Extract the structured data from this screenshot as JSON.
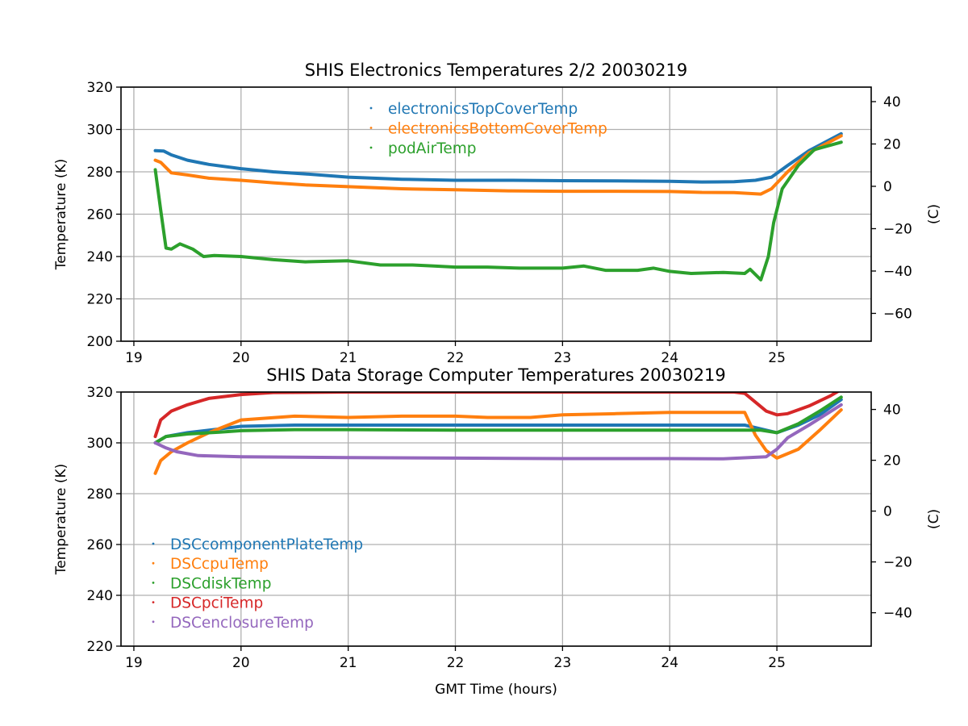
{
  "chart_data": [
    {
      "type": "line",
      "title": "SHIS Electronics Temperatures 2/2 20030219",
      "xlabel": "",
      "ylabel": "Temperature (K)",
      "ylabel_right": "(C)",
      "xlim": [
        18.88,
        25.88
      ],
      "ylim": [
        200,
        320
      ],
      "x_ticks": [
        "19",
        "20",
        "21",
        "22",
        "23",
        "24",
        "25"
      ],
      "y_ticks": [
        "200",
        "220",
        "240",
        "260",
        "280",
        "300",
        "320"
      ],
      "y_ticks_right": [
        "40",
        "20",
        "0",
        "−20",
        "−40",
        "−60"
      ],
      "y_ticks_right_values": [
        40,
        20,
        0,
        -20,
        -40,
        -60
      ],
      "grid": true,
      "legend_position": "top-center",
      "series": [
        {
          "name": "electronicsTopCoverTemp",
          "color": "#1f77b4",
          "x": [
            19.2,
            19.28,
            19.35,
            19.5,
            19.7,
            20.0,
            20.3,
            20.6,
            21.0,
            21.5,
            22.0,
            22.5,
            23.0,
            23.5,
            24.0,
            24.3,
            24.6,
            24.8,
            24.95,
            25.1,
            25.3,
            25.6
          ],
          "y": [
            290,
            289.8,
            288,
            285.5,
            283.5,
            281.5,
            280,
            279,
            277.5,
            276.5,
            276,
            276,
            275.8,
            275.7,
            275.5,
            275.2,
            275.3,
            276,
            277.5,
            283,
            290,
            298
          ]
        },
        {
          "name": "electronicsBottomCoverTemp",
          "color": "#ff7f0e",
          "x": [
            19.2,
            19.25,
            19.3,
            19.35,
            19.5,
            19.7,
            20.0,
            20.3,
            20.6,
            21.0,
            21.5,
            22.0,
            22.5,
            23.0,
            23.5,
            24.0,
            24.3,
            24.6,
            24.85,
            24.95,
            25.1,
            25.3,
            25.6
          ],
          "y": [
            285.5,
            284.5,
            282,
            279.5,
            278.5,
            277,
            276,
            274.8,
            273.8,
            273,
            272,
            271.5,
            271,
            270.8,
            270.8,
            270.7,
            270.3,
            270.2,
            269.5,
            272,
            280,
            289,
            297
          ]
        },
        {
          "name": "podAirTemp",
          "color": "#2ca02c",
          "x": [
            19.2,
            19.25,
            19.3,
            19.35,
            19.43,
            19.55,
            19.65,
            19.75,
            20.0,
            20.3,
            20.6,
            21.0,
            21.3,
            21.6,
            21.8,
            22.0,
            22.3,
            22.6,
            23.0,
            23.2,
            23.4,
            23.7,
            23.85,
            24.0,
            24.2,
            24.5,
            24.7,
            24.75,
            24.85,
            24.92,
            24.97,
            25.05,
            25.2,
            25.35,
            25.6
          ],
          "y": [
            281,
            262,
            244,
            243.5,
            246,
            243.5,
            240,
            240.5,
            240,
            238.5,
            237.5,
            238,
            236,
            236,
            235.5,
            235,
            235,
            234.5,
            234.5,
            235.5,
            233.5,
            233.5,
            234.5,
            233,
            232,
            232.5,
            232,
            234,
            229,
            240,
            256,
            272,
            283,
            290.5,
            294
          ]
        }
      ]
    },
    {
      "type": "line",
      "title": "SHIS Data Storage Computer Temperatures 20030219",
      "xlabel": "GMT Time (hours)",
      "ylabel": "Temperature (K)",
      "ylabel_right": "(C)",
      "xlim": [
        18.88,
        25.88
      ],
      "ylim": [
        220,
        320
      ],
      "x_ticks": [
        "19",
        "20",
        "21",
        "22",
        "23",
        "24",
        "25"
      ],
      "y_ticks": [
        "220",
        "240",
        "260",
        "280",
        "300",
        "320"
      ],
      "y_ticks_right": [
        "40",
        "20",
        "0",
        "−20",
        "−40"
      ],
      "y_ticks_right_values": [
        40,
        20,
        0,
        -20,
        -40
      ],
      "grid": true,
      "legend_position": "lower-left",
      "series": [
        {
          "name": "DSCcomponentPlateTemp",
          "color": "#1f77b4",
          "x": [
            19.2,
            19.3,
            19.5,
            19.8,
            20.0,
            20.5,
            21.0,
            22.0,
            23.0,
            24.0,
            24.7,
            24.85,
            25.0,
            25.2,
            25.4,
            25.6
          ],
          "y": [
            300,
            302.5,
            304,
            305.5,
            306.5,
            307,
            307,
            307,
            307,
            307,
            307,
            305.5,
            304,
            307,
            311,
            317
          ]
        },
        {
          "name": "DSCcpuTemp",
          "color": "#ff7f0e",
          "x": [
            19.2,
            19.25,
            19.35,
            19.5,
            19.7,
            20.0,
            20.5,
            21.0,
            21.5,
            22.0,
            22.3,
            22.7,
            23.0,
            23.5,
            24.0,
            24.5,
            24.7,
            24.8,
            24.9,
            25.0,
            25.2,
            25.4,
            25.6
          ],
          "y": [
            288,
            293,
            296.5,
            300,
            304,
            309,
            310.5,
            310,
            310.5,
            310.5,
            310,
            310,
            311,
            311.5,
            312,
            312,
            312,
            303,
            297,
            294,
            297.5,
            305,
            313
          ]
        },
        {
          "name": "DSCdiskTemp",
          "color": "#2ca02c",
          "x": [
            19.2,
            19.3,
            19.5,
            19.8,
            20.0,
            20.5,
            21.0,
            22.0,
            23.0,
            24.0,
            24.7,
            24.85,
            25.0,
            25.2,
            25.4,
            25.6
          ],
          "y": [
            300,
            302.5,
            303.5,
            304.2,
            304.8,
            305.2,
            305.2,
            305,
            305,
            305,
            305,
            305,
            304,
            307.5,
            312.5,
            318
          ]
        },
        {
          "name": "DSCpciTemp",
          "color": "#d62728",
          "x": [
            19.2,
            19.25,
            19.35,
            19.5,
            19.7,
            20.0,
            20.3,
            21.0,
            22.0,
            23.0,
            24.0,
            24.6,
            24.7,
            24.8,
            24.9,
            25.0,
            25.1,
            25.3,
            25.5,
            25.6
          ],
          "y": [
            302.5,
            309,
            312.5,
            315,
            317.5,
            319,
            319.8,
            320,
            320,
            320,
            320,
            320,
            319.5,
            316,
            312.5,
            311,
            311.5,
            314.5,
            318.5,
            321
          ]
        },
        {
          "name": "DSCenclosureTemp",
          "color": "#9467bd",
          "x": [
            19.2,
            19.3,
            19.4,
            19.6,
            20.0,
            21.0,
            22.0,
            23.0,
            24.0,
            24.5,
            24.9,
            25.0,
            25.1,
            25.3,
            25.6
          ],
          "y": [
            300,
            298,
            296.5,
            295,
            294.5,
            294.2,
            294,
            293.8,
            293.8,
            293.7,
            294.5,
            297.5,
            302,
            307,
            315
          ]
        }
      ]
    }
  ]
}
